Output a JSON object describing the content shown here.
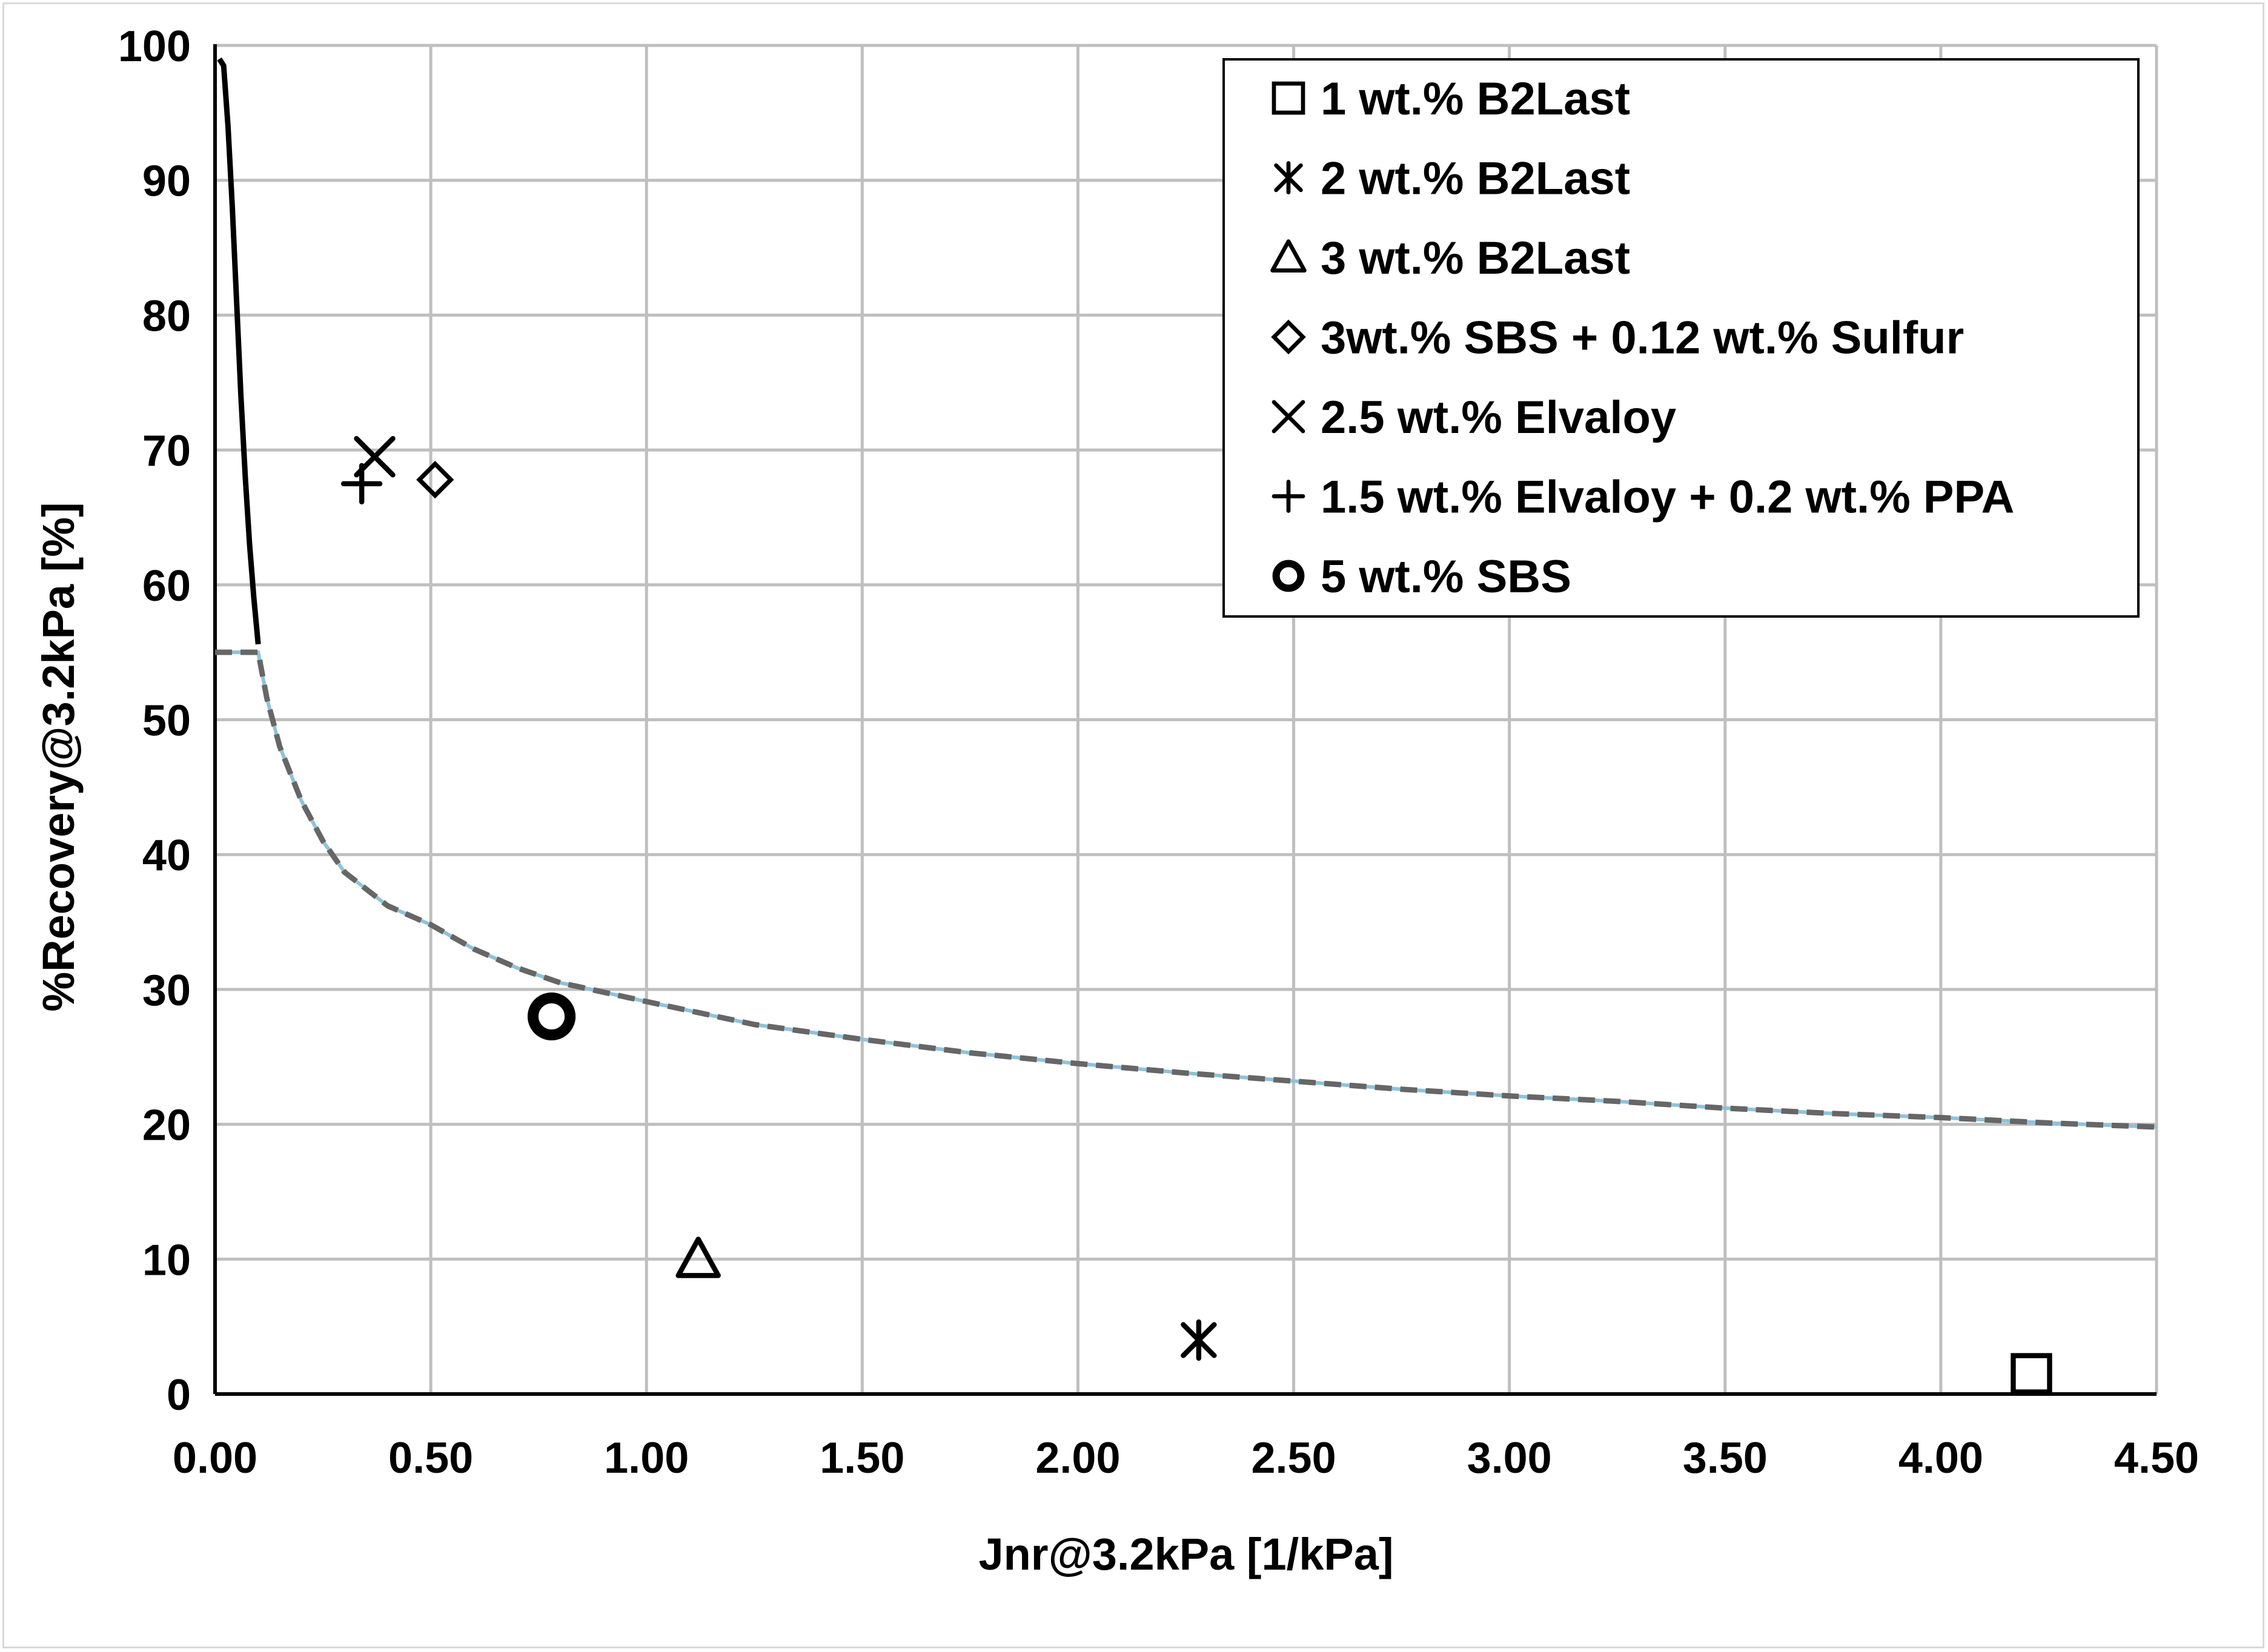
{
  "chart_data": {
    "type": "scatter",
    "xlabel": "Jnr@3.2kPa [1/kPa]",
    "ylabel": "%Recovery@3.2kPa  [%]",
    "xlim": [
      0,
      4.5
    ],
    "ylim": [
      0,
      100
    ],
    "x_ticks": [
      "0.00",
      "0.50",
      "1.00",
      "1.50",
      "2.00",
      "2.50",
      "3.00",
      "3.50",
      "4.00",
      "4.50"
    ],
    "y_ticks": [
      "0",
      "10",
      "20",
      "30",
      "40",
      "50",
      "60",
      "70",
      "80",
      "90",
      "100"
    ],
    "grid": true,
    "legend_position": "top-right",
    "series": [
      {
        "name": "1 wt.% B2Last",
        "marker": "square-icon",
        "points": [
          {
            "x": 4.21,
            "y": 1.5
          }
        ]
      },
      {
        "name": "2 wt.% B2Last",
        "marker": "asterisk-icon",
        "points": [
          {
            "x": 2.28,
            "y": 4.0
          }
        ]
      },
      {
        "name": "3 wt.% B2Last",
        "marker": "triangle-icon",
        "points": [
          {
            "x": 1.12,
            "y": 10.0
          }
        ]
      },
      {
        "name": "3wt.% SBS + 0.12 wt.% Sulfur",
        "marker": "diamond-icon",
        "points": [
          {
            "x": 0.51,
            "y": 67.8
          }
        ]
      },
      {
        "name": "2.5 wt.% Elvaloy",
        "marker": "x-icon",
        "points": [
          {
            "x": 0.37,
            "y": 69.5
          }
        ]
      },
      {
        "name": "1.5 wt.% Elvaloy + 0.2 wt.% PPA",
        "marker": "plus-icon",
        "points": [
          {
            "x": 0.34,
            "y": 67.5
          }
        ]
      },
      {
        "name": "5 wt.% SBS",
        "marker": "circle-icon",
        "points": [
          {
            "x": 0.78,
            "y": 28.0
          }
        ]
      }
    ],
    "curves": [
      {
        "style": "solid",
        "color": "#000000",
        "points": [
          [
            0.01,
            99.0
          ],
          [
            0.02,
            98.5
          ],
          [
            0.03,
            94.0
          ],
          [
            0.04,
            88.0
          ],
          [
            0.05,
            81.0
          ],
          [
            0.06,
            74.0
          ],
          [
            0.07,
            68.0
          ],
          [
            0.08,
            63.0
          ],
          [
            0.09,
            59.0
          ],
          [
            0.1,
            55.6
          ]
        ]
      },
      {
        "style": "dashed",
        "color": "#666666",
        "underlay_color": "#8fc3d9",
        "points": [
          [
            0.0,
            55.0
          ],
          [
            0.1,
            55.0
          ],
          [
            0.12,
            51.6
          ],
          [
            0.15,
            48.0
          ],
          [
            0.2,
            44.0
          ],
          [
            0.25,
            41.0
          ],
          [
            0.3,
            38.7
          ],
          [
            0.4,
            36.2
          ],
          [
            0.5,
            34.8
          ],
          [
            0.6,
            33.0
          ],
          [
            0.7,
            31.6
          ],
          [
            0.8,
            30.5
          ],
          [
            1.0,
            29.1
          ],
          [
            1.25,
            27.4
          ],
          [
            1.5,
            26.3
          ],
          [
            1.75,
            25.3
          ],
          [
            2.0,
            24.5
          ],
          [
            2.25,
            23.8
          ],
          [
            2.5,
            23.2
          ],
          [
            2.75,
            22.6
          ],
          [
            3.0,
            22.1
          ],
          [
            3.25,
            21.7
          ],
          [
            3.5,
            21.2
          ],
          [
            3.75,
            20.8
          ],
          [
            4.0,
            20.5
          ],
          [
            4.25,
            20.1
          ],
          [
            4.5,
            19.8
          ]
        ]
      }
    ]
  }
}
